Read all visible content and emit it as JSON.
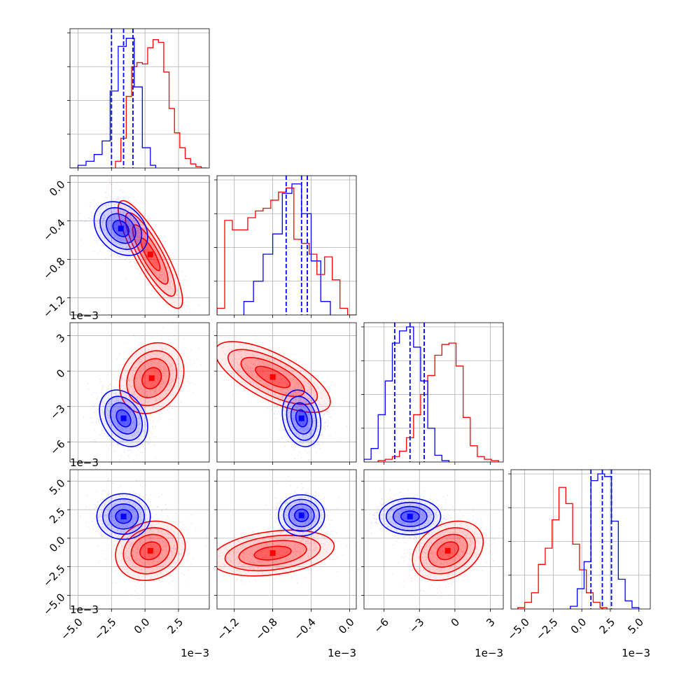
{
  "chart_data": {
    "type": "corner",
    "grid": true,
    "colors": {
      "series_a": "#0000ff",
      "series_b": "#ff0000"
    },
    "parameters": [
      {
        "xlim": [
          -5.6,
          4.8
        ],
        "xticks": [
          -5.0,
          -2.5,
          0.0,
          2.5
        ],
        "xtick_labels": [
          "−5.0",
          "−2.5",
          "0.0",
          "2.5"
        ],
        "offset_text": "1e−3"
      },
      {
        "xlim": [
          -1.38,
          0.07
        ],
        "xticks": [
          -1.2,
          -0.8,
          -0.4,
          0.0
        ],
        "xtick_labels": [
          "−1.2",
          "−0.8",
          "−0.4",
          "0.0"
        ],
        "offset_text": "1e−3"
      },
      {
        "xlim": [
          -7.7,
          4.1
        ],
        "xticks": [
          -6,
          -3,
          0,
          3
        ],
        "xtick_labels": [
          "−6",
          "−3",
          "0",
          "3"
        ],
        "offset_text": "1e−3"
      },
      {
        "xlim": [
          -6.2,
          6.0
        ],
        "xticks": [
          -5.0,
          -2.5,
          0.0,
          2.5,
          5.0
        ],
        "xtick_labels": [
          "−5.0",
          "−2.5",
          "0.0",
          "2.5",
          "5.0"
        ],
        "offset_text": "1e−3"
      }
    ],
    "histograms": [
      {
        "param": 0,
        "blue": {
          "edges": [
            -5.6,
            -5.0,
            -4.4,
            -3.8,
            -3.2,
            -2.6,
            -2.0,
            -1.4,
            -0.8,
            -0.2,
            0.4,
            0.8
          ],
          "counts": [
            0,
            0.02,
            0.05,
            0.1,
            0.2,
            0.57,
            0.9,
            0.96,
            0.6,
            0.15,
            0.02
          ]
        },
        "red": {
          "edges": [
            -2.2,
            -1.8,
            -1.4,
            -1.0,
            -0.6,
            -0.2,
            0.2,
            0.6,
            1.0,
            1.4,
            1.8,
            2.2,
            2.6,
            3.0,
            3.4,
            3.8,
            4.2,
            4.6
          ],
          "counts": [
            0.05,
            0.22,
            0.53,
            0.75,
            0.78,
            0.77,
            0.89,
            0.95,
            0.93,
            0.71,
            0.44,
            0.26,
            0.15,
            0.07,
            0.03,
            0.01,
            0.0
          ]
        },
        "quantiles": [
          -2.5,
          -1.6,
          -0.9
        ]
      },
      {
        "param": 1,
        "blue": {
          "edges": [
            -1.1,
            -1.0,
            -0.9,
            -0.8,
            -0.7,
            -0.6,
            -0.5,
            -0.4,
            -0.3,
            -0.2
          ],
          "counts": [
            0.1,
            0.25,
            0.45,
            0.6,
            0.9,
            0.97,
            0.75,
            0.4,
            0.1
          ]
        },
        "red": {
          "edges": [
            -1.38,
            -1.3,
            -1.22,
            -1.14,
            -1.06,
            -0.98,
            -0.9,
            -0.82,
            -0.74,
            -0.66,
            -0.58,
            -0.5,
            -0.42,
            -0.34,
            -0.26,
            -0.18,
            -0.1,
            -0.02,
            0.07
          ],
          "counts": [
            0.05,
            0.7,
            0.63,
            0.63,
            0.72,
            0.77,
            0.79,
            0.85,
            0.91,
            0.94,
            0.56,
            0.53,
            0.45,
            0.3,
            0.43,
            0.26,
            0.05,
            0.0
          ]
        },
        "quantiles": [
          -0.66,
          -0.5,
          -0.44
        ]
      },
      {
        "param": 2,
        "blue": {
          "edges": [
            -7.7,
            -7.1,
            -6.5,
            -5.9,
            -5.3,
            -4.7,
            -4.1,
            -3.5,
            -2.9,
            -2.3,
            -1.7,
            -1.1,
            -0.5
          ],
          "counts": [
            0.02,
            0.1,
            0.35,
            0.6,
            0.88,
            0.97,
            1.0,
            0.85,
            0.6,
            0.25,
            0.05,
            0.01
          ]
        },
        "red": {
          "edges": [
            -6.5,
            -5.9,
            -5.3,
            -4.7,
            -4.1,
            -3.5,
            -2.9,
            -2.3,
            -1.7,
            -1.1,
            -0.5,
            0.1,
            0.7,
            1.3,
            1.9,
            2.5,
            3.1,
            3.7
          ],
          "counts": [
            0.01,
            0.02,
            0.04,
            0.08,
            0.18,
            0.35,
            0.5,
            0.64,
            0.79,
            0.87,
            0.88,
            0.71,
            0.33,
            0.12,
            0.04,
            0.02,
            0.01
          ]
        },
        "quantiles": [
          -5.1,
          -3.8,
          -2.6
        ]
      },
      {
        "param": 3,
        "blue": {
          "edges": [
            -1.0,
            -0.4,
            0.2,
            0.8,
            1.4,
            2.0,
            2.6,
            3.2,
            3.8,
            4.4,
            5.0
          ],
          "counts": [
            0.02,
            0.15,
            0.35,
            0.95,
            1.0,
            0.98,
            0.65,
            0.22,
            0.06,
            0.01
          ]
        },
        "red": {
          "edges": [
            -5.6,
            -5.0,
            -4.4,
            -3.8,
            -3.2,
            -2.6,
            -2.0,
            -1.4,
            -0.8,
            -0.2,
            0.4,
            1.0,
            1.6,
            2.2
          ],
          "counts": [
            0.01,
            0.05,
            0.12,
            0.33,
            0.45,
            0.66,
            0.9,
            0.78,
            0.48,
            0.29,
            0.12,
            0.05,
            0.01
          ]
        },
        "quantiles": [
          0.8,
          1.8,
          2.6
        ]
      }
    ],
    "pairs": [
      {
        "x": 0,
        "y": 1,
        "blue": {
          "mean": [
            -1.8,
            -0.48
          ],
          "sd": [
            1.0,
            0.14
          ],
          "rho": -0.3
        },
        "red": {
          "mean": [
            0.4,
            -0.75
          ],
          "sd": [
            1.2,
            0.28
          ],
          "rho": -0.85
        }
      },
      {
        "x": 0,
        "y": 2,
        "blue": {
          "mean": [
            -1.6,
            -4.0
          ],
          "sd": [
            0.9,
            1.2
          ],
          "rho": -0.3
        },
        "red": {
          "mean": [
            0.5,
            -0.6
          ],
          "sd": [
            1.2,
            1.5
          ],
          "rho": 0.2
        }
      },
      {
        "x": 1,
        "y": 2,
        "blue": {
          "mean": [
            -0.5,
            -4.0
          ],
          "sd": [
            0.1,
            1.2
          ],
          "rho": -0.2
        },
        "red": {
          "mean": [
            -0.8,
            -0.5
          ],
          "sd": [
            0.3,
            1.5
          ],
          "rho": -0.7
        }
      },
      {
        "x": 0,
        "y": 3,
        "blue": {
          "mean": [
            -1.6,
            1.9
          ],
          "sd": [
            1.0,
            1.0
          ],
          "rho": 0.0
        },
        "red": {
          "mean": [
            0.4,
            -1.1
          ],
          "sd": [
            1.3,
            1.3
          ],
          "rho": 0.15
        }
      },
      {
        "x": 1,
        "y": 3,
        "blue": {
          "mean": [
            -0.5,
            2.0
          ],
          "sd": [
            0.12,
            0.9
          ],
          "rho": 0.0
        },
        "red": {
          "mean": [
            -0.8,
            -1.3
          ],
          "sd": [
            0.32,
            1.0
          ],
          "rho": 0.3
        }
      },
      {
        "x": 2,
        "y": 3,
        "blue": {
          "mean": [
            -3.8,
            1.9
          ],
          "sd": [
            1.3,
            0.8
          ],
          "rho": 0.0
        },
        "red": {
          "mean": [
            -0.6,
            -1.1
          ],
          "sd": [
            1.5,
            1.3
          ],
          "rho": 0.3
        }
      }
    ]
  }
}
